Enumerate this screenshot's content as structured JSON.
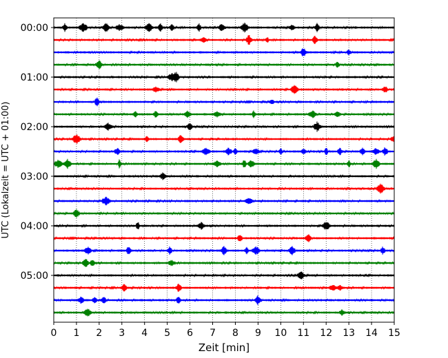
{
  "chart_data": {
    "type": "line",
    "xlabel": "Zeit  [min]",
    "ylabel": "UTC (Lokalzeit = UTC + 01:00)",
    "xlim": [
      0,
      15
    ],
    "x_ticks": [
      0,
      1,
      2,
      3,
      4,
      5,
      6,
      7,
      8,
      9,
      10,
      11,
      12,
      13,
      14,
      15
    ],
    "x_grid": true,
    "y_tick_labels": [
      "00:00",
      "01:00",
      "02:00",
      "03:00",
      "04:00",
      "05:00"
    ],
    "y_tick_trace_index": [
      0,
      4,
      8,
      12,
      16,
      20
    ],
    "trace_count": 24,
    "trace_interval_minutes": 15,
    "trace_color_cycle": [
      "#000000",
      "#ff0000",
      "#0000ff",
      "#008000"
    ],
    "events": [
      {
        "trace": 0,
        "at": [
          0.5,
          1.3,
          2.3,
          2.9,
          4.2,
          4.7,
          5.2,
          6.4,
          7.4,
          8.4,
          10.5,
          11.6
        ]
      },
      {
        "trace": 1,
        "at": [
          6.6,
          8.6,
          9.4,
          11.5
        ]
      },
      {
        "trace": 2,
        "at": [
          11.0,
          13.0
        ]
      },
      {
        "trace": 3,
        "at": [
          2.0,
          12.5
        ]
      },
      {
        "trace": 4,
        "at": [
          5.2,
          5.4
        ]
      },
      {
        "trace": 5,
        "at": [
          4.5,
          10.6,
          14.6
        ]
      },
      {
        "trace": 6,
        "at": [
          1.9,
          9.6
        ]
      },
      {
        "trace": 7,
        "at": [
          3.6,
          4.5,
          5.9,
          7.2,
          8.8,
          11.4,
          12.5
        ]
      },
      {
        "trace": 8,
        "at": [
          2.4,
          6.0,
          11.6
        ]
      },
      {
        "trace": 9,
        "at": [
          1.0,
          4.1,
          5.6,
          15.0
        ]
      },
      {
        "trace": 10,
        "at": [
          2.8,
          6.7,
          7.7,
          8.0,
          8.9,
          10.0,
          11.0,
          12.0,
          12.6,
          13.6,
          14.2,
          14.6
        ]
      },
      {
        "trace": 11,
        "at": [
          0.2,
          0.6,
          2.9,
          7.2,
          8.4,
          8.7,
          13.0,
          14.2
        ]
      },
      {
        "trace": 12,
        "at": [
          4.8
        ]
      },
      {
        "trace": 13,
        "at": [
          14.4
        ]
      },
      {
        "trace": 14,
        "at": [
          2.3,
          8.6
        ]
      },
      {
        "trace": 15,
        "at": [
          1.0
        ]
      },
      {
        "trace": 16,
        "at": [
          3.7,
          6.5,
          12.0
        ]
      },
      {
        "trace": 17,
        "at": [
          8.2,
          11.2
        ]
      },
      {
        "trace": 18,
        "at": [
          1.5,
          3.3,
          5.1,
          7.5,
          8.5,
          8.9,
          10.5,
          14.5
        ]
      },
      {
        "trace": 19,
        "at": [
          1.4,
          1.7,
          5.2
        ]
      },
      {
        "trace": 20,
        "at": [
          10.9
        ]
      },
      {
        "trace": 21,
        "at": [
          3.1,
          5.5,
          12.3,
          12.6
        ]
      },
      {
        "trace": 22,
        "at": [
          1.2,
          1.8,
          2.2,
          5.5,
          9.0
        ]
      },
      {
        "trace": 23,
        "at": [
          1.5,
          12.7
        ]
      }
    ]
  }
}
